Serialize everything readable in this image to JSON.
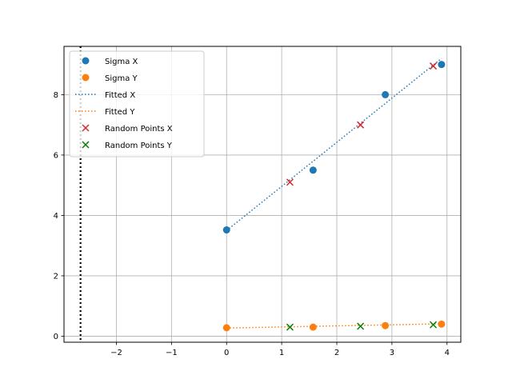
{
  "chart_data": {
    "type": "scatter",
    "title": "",
    "xlabel": "",
    "ylabel": "",
    "xlim": [
      -2.95,
      4.25
    ],
    "ylim": [
      -0.2,
      9.6
    ],
    "x_ticks": [
      -2,
      -1,
      0,
      1,
      2,
      3,
      4
    ],
    "y_ticks": [
      0,
      2,
      4,
      6,
      8
    ],
    "x_tick_labels": [
      "−2",
      "−1",
      "0",
      "1",
      "2",
      "3",
      "4"
    ],
    "y_tick_labels": [
      "0",
      "2",
      "4",
      "6",
      "8"
    ],
    "grid": true,
    "legend_position": "top-left",
    "vertical_reference_line": {
      "x": -2.65,
      "style": "dotted",
      "color": "#000000"
    },
    "series": [
      {
        "name": "Sigma X",
        "kind": "scatter",
        "marker": "circle",
        "color": "#1f77b4",
        "points": [
          [
            0.0,
            3.52
          ],
          [
            1.57,
            5.5
          ],
          [
            2.88,
            8.0
          ],
          [
            3.9,
            9.0
          ]
        ]
      },
      {
        "name": "Sigma Y",
        "kind": "scatter",
        "marker": "circle",
        "color": "#ff7f0e",
        "points": [
          [
            0.0,
            0.28
          ],
          [
            1.57,
            0.3
          ],
          [
            2.88,
            0.35
          ],
          [
            3.9,
            0.4
          ]
        ]
      },
      {
        "name": "Fitted X",
        "kind": "line",
        "style": "dotted",
        "color": "#1f77b4",
        "points": [
          [
            0.0,
            3.5
          ],
          [
            3.9,
            9.2
          ]
        ]
      },
      {
        "name": "Fitted Y",
        "kind": "line",
        "style": "dotted",
        "color": "#ff7f0e",
        "points": [
          [
            0.0,
            0.27
          ],
          [
            3.9,
            0.41
          ]
        ]
      },
      {
        "name": "Random Points X",
        "kind": "scatter",
        "marker": "x",
        "color": "#d62728",
        "points": [
          [
            1.15,
            5.1
          ],
          [
            2.43,
            7.0
          ],
          [
            3.75,
            8.95
          ]
        ]
      },
      {
        "name": "Random Points Y",
        "kind": "scatter",
        "marker": "x",
        "color": "#008000",
        "points": [
          [
            1.15,
            0.3
          ],
          [
            2.43,
            0.33
          ],
          [
            3.75,
            0.38
          ]
        ]
      }
    ]
  }
}
